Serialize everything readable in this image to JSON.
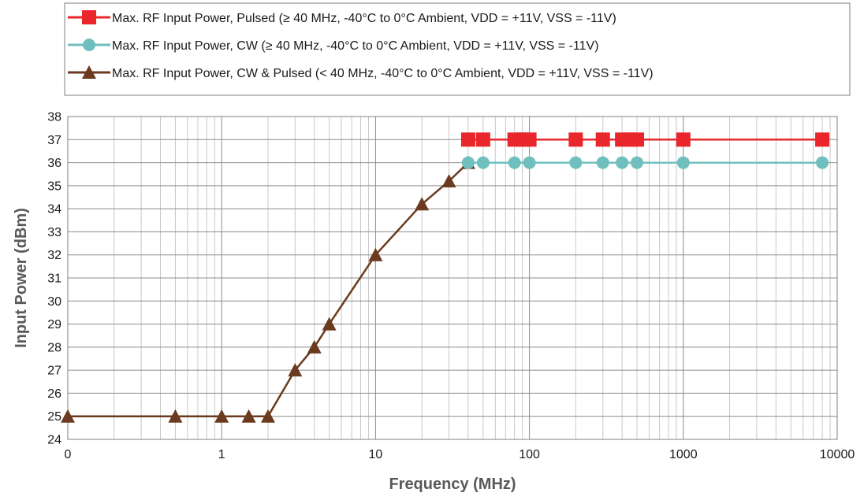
{
  "chart_data": {
    "type": "line",
    "xlabel": "Frequency (MHz)",
    "ylabel": "Input Power (dBm)",
    "x_scale": "log",
    "xlim": [
      0.1,
      10000
    ],
    "ylim": [
      24,
      38
    ],
    "x_tick_labels": [
      "0",
      "1",
      "10",
      "100",
      "1000",
      "10000"
    ],
    "y_ticks": [
      24,
      25,
      26,
      27,
      28,
      29,
      30,
      31,
      32,
      33,
      34,
      35,
      36,
      37,
      38
    ],
    "grid": true,
    "legend_position": "top",
    "series": [
      {
        "name": "Max. RF Input Power, Pulsed (≥ 40 MHz, -40°C to 0°C Ambient, VDD = +11V, VSS = -11V)",
        "color": "#e8262b",
        "marker": "square",
        "x": [
          40,
          50,
          80,
          90,
          100,
          200,
          300,
          400,
          450,
          500,
          1000,
          8000
        ],
        "y": [
          37,
          37,
          37,
          37,
          37,
          37,
          37,
          37,
          37,
          37,
          37,
          37
        ]
      },
      {
        "name": "Max. RF Input Power, CW (≥ 40 MHz, -40°C to 0°C Ambient, VDD = +11V, VSS = -11V)",
        "color": "#6fbfbf",
        "marker": "circle",
        "x": [
          40,
          50,
          80,
          100,
          200,
          300,
          400,
          500,
          1000,
          8000
        ],
        "y": [
          36,
          36,
          36,
          36,
          36,
          36,
          36,
          36,
          36,
          36
        ]
      },
      {
        "name": "Max. RF Input Power, CW & Pulsed (< 40 MHz, -40°C to 0°C Ambient, VDD = +11V, VSS = -11V)",
        "color": "#6b3a1f",
        "marker": "triangle",
        "x": [
          0.1,
          0.5,
          1,
          1.5,
          2,
          3,
          4,
          5,
          10,
          20,
          30,
          40
        ],
        "y": [
          25,
          25,
          25,
          25,
          25,
          27,
          28,
          29,
          32,
          34.2,
          35.2,
          36
        ]
      }
    ]
  }
}
